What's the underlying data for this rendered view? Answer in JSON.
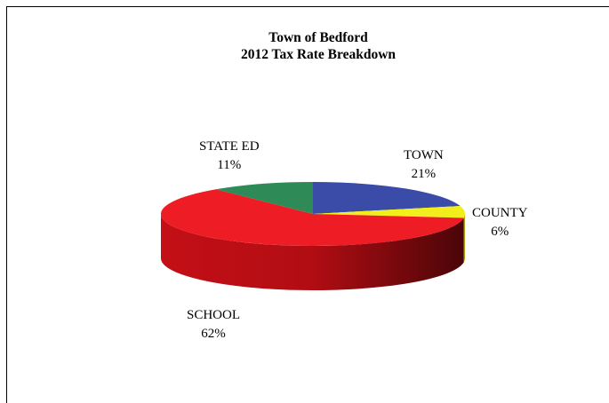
{
  "chart_data": {
    "type": "pie",
    "title_lines": [
      "Town of Bedford",
      "2012 Tax Rate Breakdown"
    ],
    "slices": [
      {
        "label": "TOWN",
        "value": 21,
        "value_label": "21%",
        "color": "#3a4ca8"
      },
      {
        "label": "COUNTY",
        "value": 6,
        "value_label": "6%",
        "color": "#f2ee1c"
      },
      {
        "label": "SCHOOL",
        "value": 62,
        "value_label": "62%",
        "color": "#ee1c24"
      },
      {
        "label": "STATE ED",
        "value": 11,
        "value_label": "11%",
        "color": "#2e8b57"
      }
    ],
    "style": "3d-pie"
  }
}
